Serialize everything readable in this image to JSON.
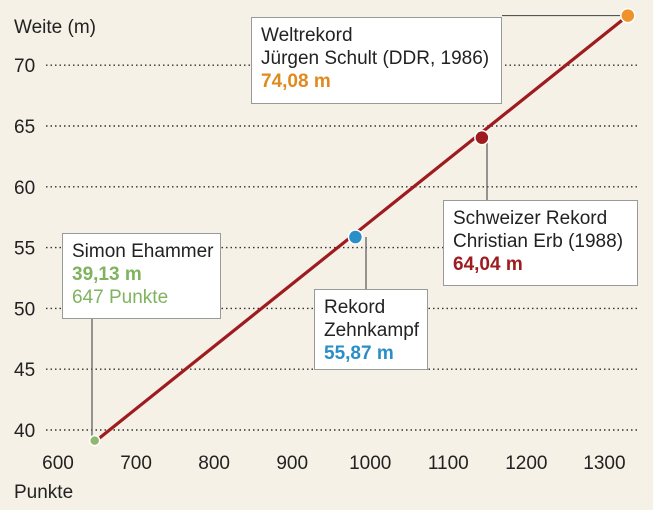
{
  "chart_data": {
    "type": "line",
    "ylabel": "Weite (m)",
    "xlabel": "Punkte",
    "xlim": [
      600,
      1340
    ],
    "ylim": [
      39,
      74.5
    ],
    "x_ticks": [
      600,
      700,
      800,
      900,
      1000,
      1100,
      1200,
      1300
    ],
    "y_ticks": [
      40,
      45,
      50,
      55,
      60,
      65,
      70
    ],
    "grid": "horizontal dotted",
    "line": {
      "color": "#9e1b20",
      "x": [
        649,
        1330
      ],
      "y": [
        39.13,
        74.08
      ]
    },
    "points": [
      {
        "name": "Simon Ehammer",
        "x": 647,
        "y": 39.13,
        "color": "#8fb870"
      },
      {
        "name": "Rekord Zehnkampf",
        "x": 981,
        "y": 55.87,
        "color": "#2a8ec8"
      },
      {
        "name": "Schweizer Rekord",
        "x": 1143,
        "y": 64.04,
        "color": "#9e1b20"
      },
      {
        "name": "Weltrekord",
        "x": 1330,
        "y": 74.08,
        "color": "#f0922b"
      }
    ],
    "annotations": {
      "weltrekord": {
        "lines": [
          "Weltrekord",
          "Jürgen Schult (DDR, 1986)"
        ],
        "value": "74,08 m",
        "color": "#e08a1e"
      },
      "schweizer": {
        "lines": [
          "Schweizer Rekord",
          "Christian Erb (1988)"
        ],
        "value": "64,04 m",
        "color": "#9e1b20"
      },
      "zehnkampf": {
        "lines": [
          "Rekord",
          "Zehnkampf"
        ],
        "value": "55,87 m",
        "color": "#2a8ec8"
      },
      "ehammer": {
        "lines": [
          "Simon Ehammer"
        ],
        "value": "39,13 m",
        "extra": "647 Punkte",
        "color": "#7fb35f"
      }
    }
  }
}
